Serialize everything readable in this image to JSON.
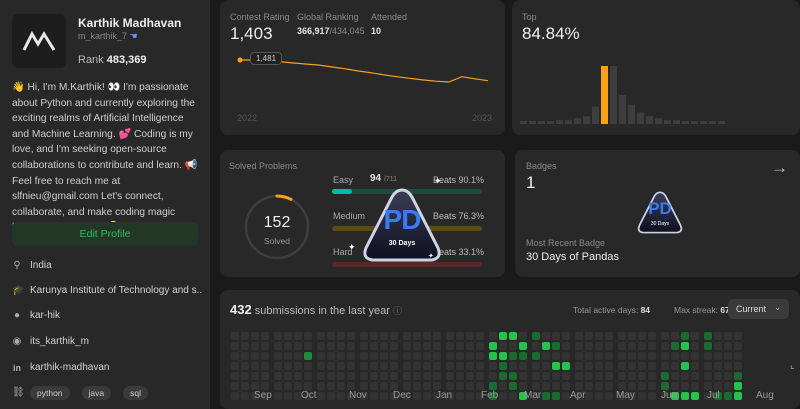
{
  "profile": {
    "name": "Karthik Madhavan",
    "handle": "m_karthik_7",
    "rank_label": "Rank",
    "rank_value": "483,369",
    "bio": "👋 Hi, I'm M.Karthik! 👀 I'm passionate about Python and currently exploring the exciting realms of Artificial Intelligence and Machine Learning. 💕 Coding is my love, and I'm seeking open-source collaborations to contribute and learn. 📢 Feel free to reach me at slfnieu@gmail.com Let's connect, collaborate, and make coding magic happen together! 🤝 💡",
    "edit_label": "Edit Profile",
    "location": "India",
    "school": "Karunya Institute of Technology and s...",
    "github": "kar-hik",
    "twitter": "its_karthik_m",
    "linkedin": "karthik-madhavan",
    "tags": [
      "python",
      "java",
      "sql"
    ]
  },
  "contest": {
    "rating_label": "Contest Rating",
    "rating": "1,403",
    "global_label": "Global Ranking",
    "global_value": "366,917",
    "global_total": "/434,045",
    "attended_label": "Attended",
    "attended_value": "10",
    "tooltip": "1,481",
    "year_start": "2022",
    "year_end": "2023",
    "line_points": [
      1481,
      1481,
      1478,
      1475,
      1470,
      1466,
      1462,
      1455,
      1448,
      1440,
      1433,
      1425,
      1418,
      1412,
      1406,
      1401,
      1398,
      1418,
      1410,
      1403
    ]
  },
  "top": {
    "label": "Top",
    "value": "84.84%",
    "bars": [
      1,
      1,
      1,
      1,
      2,
      2,
      3,
      4,
      9,
      30,
      30,
      15,
      10,
      6,
      4,
      3,
      2,
      2,
      1,
      1,
      1,
      1,
      1
    ],
    "highlight_index": 9
  },
  "solved": {
    "title": "Solved Problems",
    "count": "152",
    "count_label": "Solved",
    "easy_label": "Easy",
    "easy_count": "94",
    "easy_total": "/711",
    "easy_beats": "Beats 90.1%",
    "medium_label": "Medium",
    "medium_beats": "Beats 76.3%",
    "hard_label": "Hard",
    "hard_beats": "Beats 33.1%",
    "easy_fraction": 0.132,
    "colors": {
      "easy": "#00b8a3",
      "medium": "#ffc01e",
      "hard": "#ef4743"
    }
  },
  "badge_popup": {
    "letters": "PD",
    "days": "30 Days"
  },
  "badges": {
    "label": "Badges",
    "count": "1",
    "recent_label": "Most Recent Badge",
    "recent_name": "30 Days of Pandas",
    "badge_letters": "PD",
    "badge_days": "30 Days"
  },
  "submissions": {
    "count": "432",
    "text": "submissions in the last year",
    "active_label": "Total active days:",
    "active_value": "84",
    "streak_label": "Max streak:",
    "streak_value": "67",
    "dropdown": "Current",
    "months": [
      "Sep",
      "Oct",
      "Nov",
      "Dec",
      "Jan",
      "Feb",
      "Mar",
      "Apr",
      "May",
      "Jun",
      "Jul",
      "Aug"
    ]
  }
}
